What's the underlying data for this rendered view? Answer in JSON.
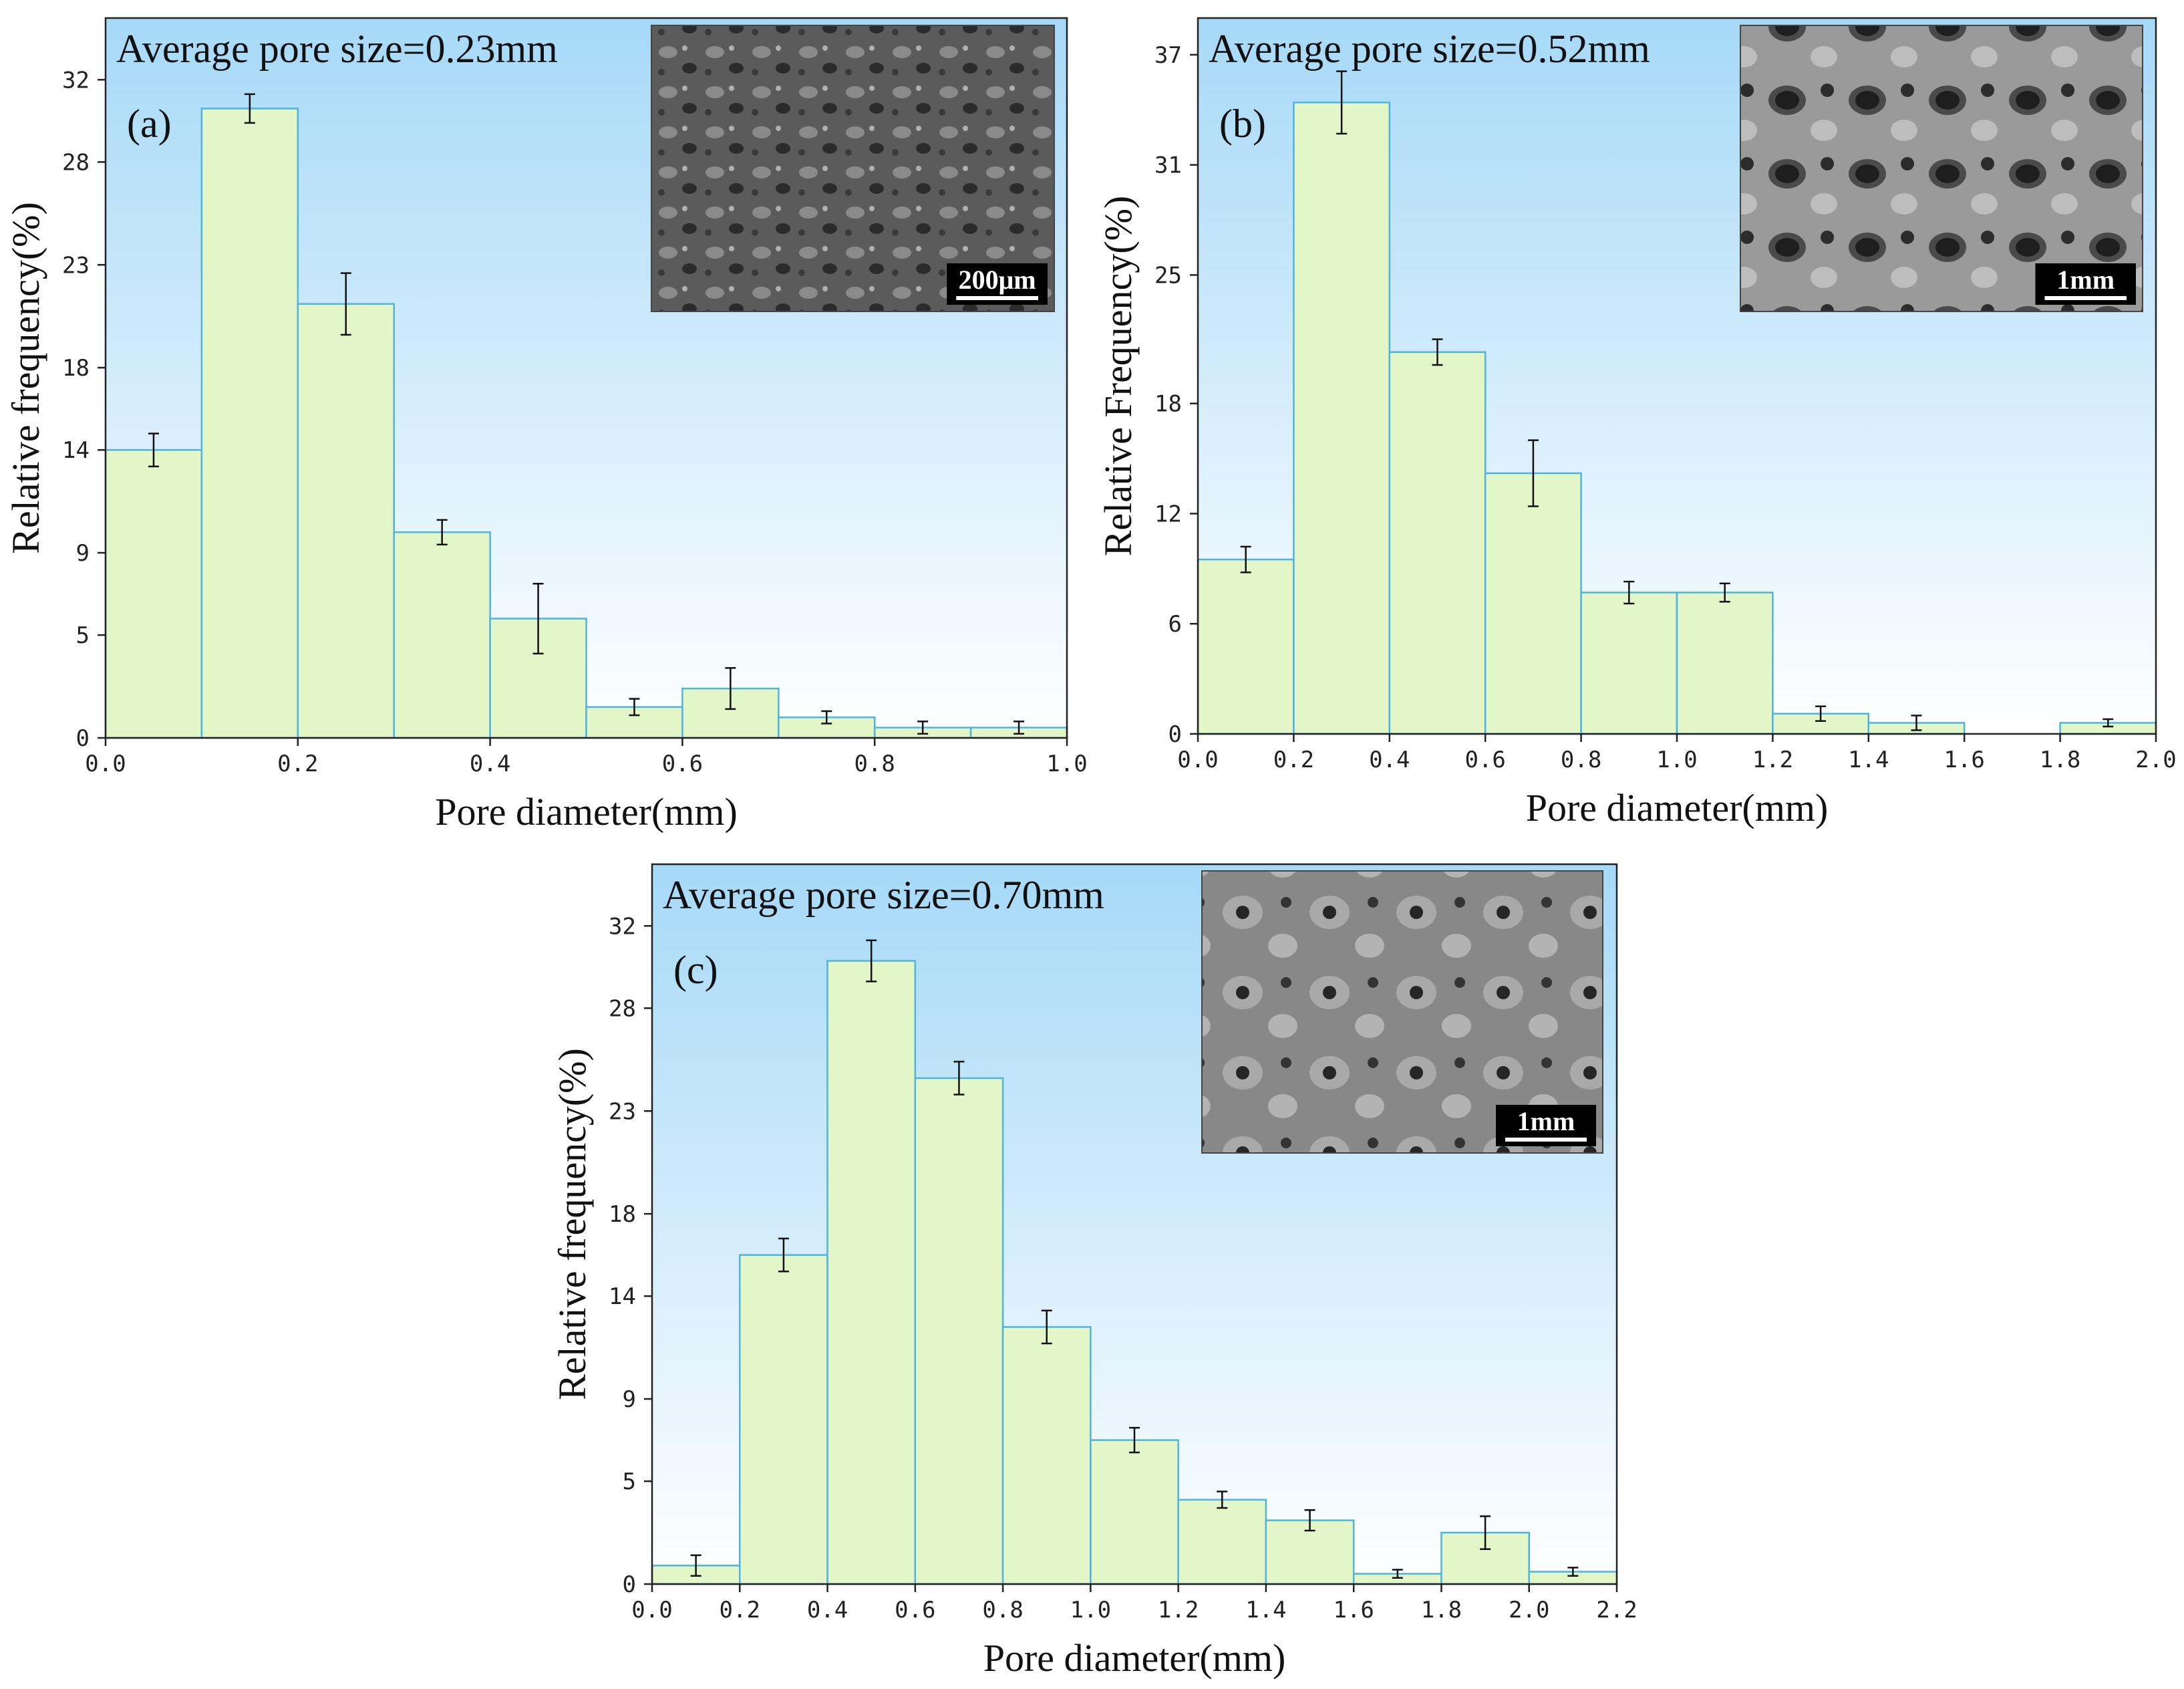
{
  "chart_data": [
    {
      "type": "bar",
      "panel_label": "(a)",
      "title": "Average pore size=0.23mm",
      "xlabel": "Pore diameter(mm)",
      "ylabel": "Relative frequency(%)",
      "xlim": [
        0,
        1.0
      ],
      "ylim": [
        0,
        35
      ],
      "x_ticks": [
        "0.0",
        "0.2",
        "0.4",
        "0.6",
        "0.8",
        "1.0"
      ],
      "y_ticks": [
        "0",
        "5",
        "9",
        "14",
        "18",
        "23",
        "28",
        "32"
      ],
      "bin_width": 0.1,
      "bins": [
        {
          "x": 0.05,
          "value": 14.0,
          "error": 0.8
        },
        {
          "x": 0.15,
          "value": 30.6,
          "error": 0.7
        },
        {
          "x": 0.25,
          "value": 21.1,
          "error": 1.5
        },
        {
          "x": 0.35,
          "value": 10.0,
          "error": 0.6
        },
        {
          "x": 0.45,
          "value": 5.8,
          "error": 1.7
        },
        {
          "x": 0.55,
          "value": 1.5,
          "error": 0.4
        },
        {
          "x": 0.65,
          "value": 2.4,
          "error": 1.0
        },
        {
          "x": 0.75,
          "value": 1.0,
          "error": 0.3
        },
        {
          "x": 0.85,
          "value": 0.5,
          "error": 0.3
        },
        {
          "x": 0.95,
          "value": 0.5,
          "error": 0.3
        }
      ],
      "inset": {
        "scale_bar": "200μm"
      },
      "grid": false
    },
    {
      "type": "bar",
      "panel_label": "(b)",
      "title": "Average pore size=0.52mm",
      "xlabel": "Pore diameter(mm)",
      "ylabel": "Relative Frequency(%)",
      "xlim": [
        0,
        2.0
      ],
      "ylim": [
        0,
        39
      ],
      "x_ticks": [
        "0.0",
        "0.2",
        "0.4",
        "0.6",
        "0.8",
        "1.0",
        "1.2",
        "1.4",
        "1.6",
        "1.8",
        "2.0"
      ],
      "y_ticks": [
        "0",
        "6",
        "12",
        "18",
        "25",
        "31",
        "37"
      ],
      "bin_width": 0.2,
      "bins": [
        {
          "x": 0.1,
          "value": 9.5,
          "error": 0.7
        },
        {
          "x": 0.3,
          "value": 34.4,
          "error": 1.7
        },
        {
          "x": 0.5,
          "value": 20.8,
          "error": 0.7
        },
        {
          "x": 0.7,
          "value": 14.2,
          "error": 1.8
        },
        {
          "x": 0.9,
          "value": 7.7,
          "error": 0.6
        },
        {
          "x": 1.1,
          "value": 7.7,
          "error": 0.5
        },
        {
          "x": 1.3,
          "value": 1.1,
          "error": 0.4
        },
        {
          "x": 1.5,
          "value": 0.6,
          "error": 0.4
        },
        {
          "x": 1.7,
          "value": 0.0,
          "error": 0
        },
        {
          "x": 1.9,
          "value": 0.6,
          "error": 0.2
        }
      ],
      "inset": {
        "scale_bar": "1mm"
      },
      "grid": false
    },
    {
      "type": "bar",
      "panel_label": "(c)",
      "title": "Average pore size=0.70mm",
      "xlabel": "Pore diameter(mm)",
      "ylabel": "Relative frequency(%)",
      "xlim": [
        0,
        2.2
      ],
      "ylim": [
        0,
        35
      ],
      "x_ticks": [
        "0.0",
        "0.2",
        "0.4",
        "0.6",
        "0.8",
        "1.0",
        "1.2",
        "1.4",
        "1.6",
        "1.8",
        "2.0",
        "2.2"
      ],
      "y_ticks": [
        "0",
        "5",
        "9",
        "14",
        "18",
        "23",
        "28",
        "32"
      ],
      "bin_width": 0.2,
      "bins": [
        {
          "x": 0.1,
          "value": 0.9,
          "error": 0.5
        },
        {
          "x": 0.3,
          "value": 16.0,
          "error": 0.8
        },
        {
          "x": 0.5,
          "value": 30.3,
          "error": 1.0
        },
        {
          "x": 0.7,
          "value": 24.6,
          "error": 0.8
        },
        {
          "x": 0.9,
          "value": 12.5,
          "error": 0.8
        },
        {
          "x": 1.1,
          "value": 7.0,
          "error": 0.6
        },
        {
          "x": 1.3,
          "value": 4.1,
          "error": 0.4
        },
        {
          "x": 1.5,
          "value": 3.1,
          "error": 0.5
        },
        {
          "x": 1.7,
          "value": 0.5,
          "error": 0.2
        },
        {
          "x": 1.9,
          "value": 2.5,
          "error": 0.8
        },
        {
          "x": 2.1,
          "value": 0.6,
          "error": 0.2
        }
      ],
      "inset": {
        "scale_bar": "1mm"
      },
      "grid": false
    }
  ],
  "colors": {
    "bar_fill": "#e3f6c7",
    "bar_stroke": "#4fb3e0",
    "bg_top": "#a6d9f7",
    "bg_bottom": "#ffffff",
    "axis": "#222222"
  }
}
